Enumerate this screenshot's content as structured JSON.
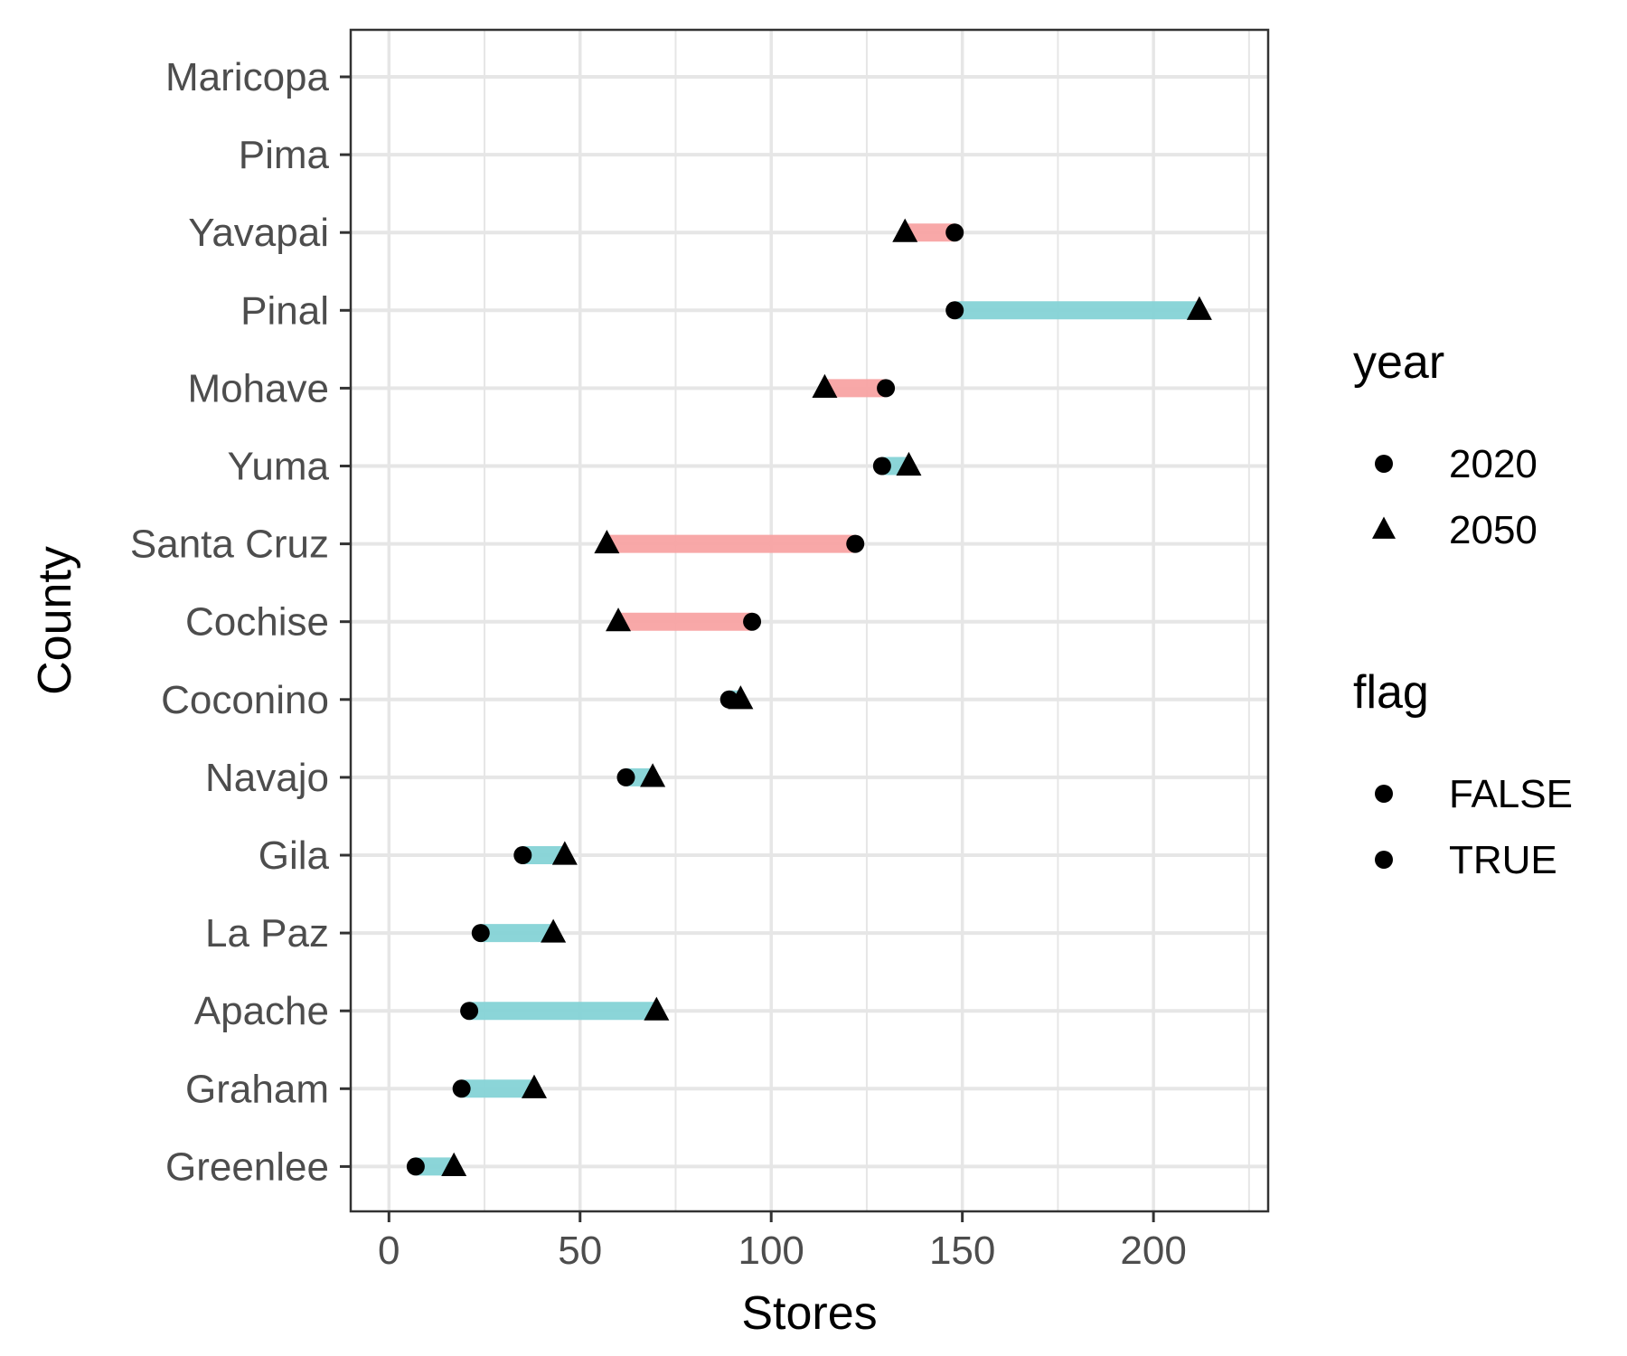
{
  "chart_data": {
    "type": "dumbbell",
    "xlabel": "Stores",
    "ylabel": "County",
    "xlim": [
      -10,
      230
    ],
    "xticks": [
      0,
      50,
      100,
      150,
      200
    ],
    "grid": true,
    "legend_position": "right",
    "categories": [
      "Maricopa",
      "Pima",
      "Yavapai",
      "Pinal",
      "Mohave",
      "Yuma",
      "Santa Cruz",
      "Cochise",
      "Coconino",
      "Navajo",
      "Gila",
      "La Paz",
      "Apache",
      "Graham",
      "Greenlee"
    ],
    "series": [
      {
        "name": "2020",
        "values": [
          null,
          null,
          148,
          148,
          130,
          129,
          122,
          95,
          89,
          62,
          35,
          24,
          21,
          19,
          7
        ]
      },
      {
        "name": "2050",
        "values": [
          null,
          null,
          135,
          212,
          114,
          136,
          57,
          60,
          92,
          69,
          46,
          43,
          70,
          38,
          17
        ]
      }
    ],
    "flags": [
      null,
      null,
      false,
      true,
      false,
      true,
      false,
      false,
      true,
      true,
      true,
      true,
      true,
      true,
      true
    ],
    "legends": [
      {
        "title": "year",
        "entries": [
          {
            "label": "2020",
            "shape": "circle"
          },
          {
            "label": "2050",
            "shape": "triangle"
          }
        ]
      },
      {
        "title": "flag",
        "entries": [
          {
            "label": "FALSE",
            "shape": "circle"
          },
          {
            "label": "TRUE",
            "shape": "circle"
          }
        ]
      }
    ],
    "colors": {
      "false_segment": "#f8a3a3",
      "true_segment": "#85d3d6",
      "point": "#000000",
      "grid": "#e6e6e6",
      "panel_border": "#333333"
    }
  }
}
